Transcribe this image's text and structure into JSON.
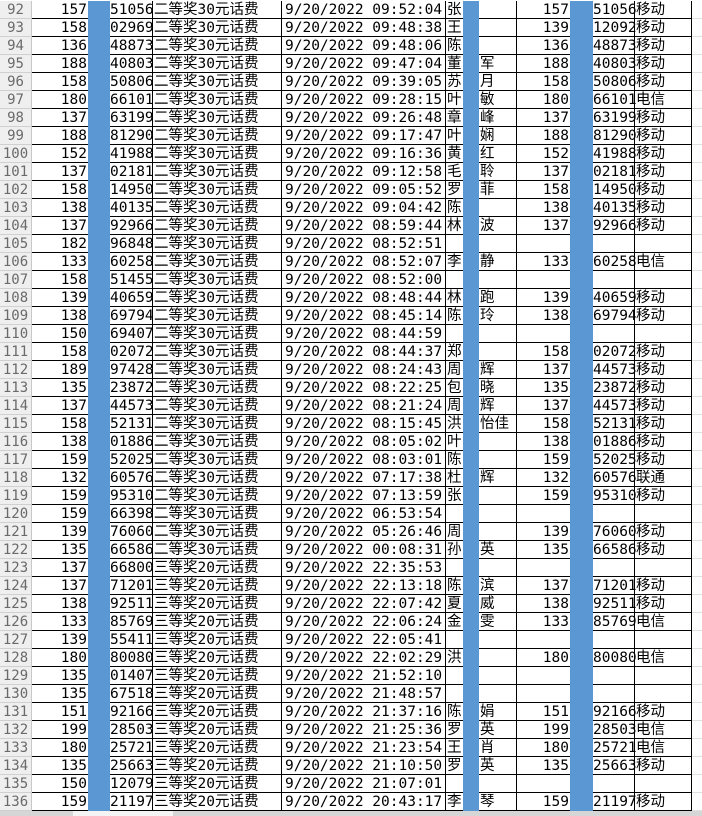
{
  "colors": {
    "highlight_column": "#5b97d3",
    "row_header_bg": "#efefef",
    "gridline": "#000000"
  },
  "rows": [
    [
      "92",
      "157",
      "51056",
      "二等奖30元话费",
      "9/20/2022 09:52:04",
      "张",
      "",
      "157",
      "51056",
      "移动"
    ],
    [
      "93",
      "158",
      "02969",
      "二等奖30元话费",
      "9/20/2022 09:48:38",
      "王",
      "",
      "139",
      "12092",
      "移动"
    ],
    [
      "94",
      "136",
      "48873",
      "二等奖30元话费",
      "9/20/2022 09:48:06",
      "陈",
      "",
      "136",
      "48873",
      "移动"
    ],
    [
      "95",
      "188",
      "40803",
      "二等奖30元话费",
      "9/20/2022 09:47:04",
      "董",
      "军",
      "188",
      "40803",
      "移动"
    ],
    [
      "96",
      "158",
      "50806",
      "二等奖30元话费",
      "9/20/2022 09:39:05",
      "苏",
      "月",
      "158",
      "50806",
      "移动"
    ],
    [
      "97",
      "180",
      "66101",
      "二等奖30元话费",
      "9/20/2022 09:28:15",
      "叶",
      "敏",
      "180",
      "66101",
      "电信"
    ],
    [
      "98",
      "137",
      "63199",
      "二等奖30元话费",
      "9/20/2022 09:26:48",
      "章",
      "峰",
      "137",
      "63199",
      "移动"
    ],
    [
      "99",
      "188",
      "81290",
      "二等奖30元话费",
      "9/20/2022 09:17:47",
      "叶",
      "娴",
      "188",
      "81290",
      "移动"
    ],
    [
      "100",
      "152",
      "41988",
      "二等奖30元话费",
      "9/20/2022 09:16:36",
      "黄",
      "红",
      "152",
      "41988",
      "移动"
    ],
    [
      "101",
      "137",
      "02181",
      "二等奖30元话费",
      "9/20/2022 09:12:58",
      "毛",
      "聆",
      "137",
      "02181",
      "移动"
    ],
    [
      "102",
      "158",
      "14950",
      "二等奖30元话费",
      "9/20/2022 09:05:52",
      "罗",
      "菲",
      "158",
      "14950",
      "移动"
    ],
    [
      "103",
      "138",
      "40135",
      "二等奖30元话费",
      "9/20/2022 09:04:42",
      "陈",
      "",
      "138",
      "40135",
      "移动"
    ],
    [
      "104",
      "137",
      "92966",
      "二等奖30元话费",
      "9/20/2022 08:59:44",
      "林",
      "波",
      "137",
      "92966",
      "移动"
    ],
    [
      "105",
      "182",
      "96848",
      "二等奖30元话费",
      "9/20/2022 08:52:51",
      "",
      "",
      "",
      "",
      ""
    ],
    [
      "106",
      "133",
      "60258",
      "二等奖30元话费",
      "9/20/2022 08:52:07",
      "李",
      "静",
      "133",
      "60258",
      "电信"
    ],
    [
      "107",
      "158",
      "51455",
      "二等奖30元话费",
      "9/20/2022 08:52:00",
      "",
      "",
      "",
      "",
      ""
    ],
    [
      "108",
      "139",
      "40659",
      "二等奖30元话费",
      "9/20/2022 08:48:44",
      "林",
      "跑",
      "139",
      "40659",
      "移动"
    ],
    [
      "109",
      "138",
      "69794",
      "二等奖30元话费",
      "9/20/2022 08:45:14",
      "陈",
      "玲",
      "138",
      "69794",
      "移动"
    ],
    [
      "110",
      "150",
      "69407",
      "二等奖30元话费",
      "9/20/2022 08:44:59",
      "",
      "",
      "",
      "",
      ""
    ],
    [
      "111",
      "158",
      "02072",
      "二等奖30元话费",
      "9/20/2022 08:44:37",
      "郑",
      "",
      "158",
      "02072",
      "移动"
    ],
    [
      "112",
      "189",
      "97428",
      "二等奖30元话费",
      "9/20/2022 08:24:43",
      "周",
      "辉",
      "137",
      "44573",
      "移动"
    ],
    [
      "113",
      "135",
      "23872",
      "二等奖30元话费",
      "9/20/2022 08:22:25",
      "包",
      "晓",
      "135",
      "23872",
      "移动"
    ],
    [
      "114",
      "137",
      "44573",
      "二等奖30元话费",
      "9/20/2022 08:21:24",
      "周",
      "辉",
      "137",
      "44573",
      "移动"
    ],
    [
      "115",
      "158",
      "52131",
      "二等奖30元话费",
      "9/20/2022 08:15:45",
      "洪",
      "怡佳",
      "158",
      "52131",
      "移动"
    ],
    [
      "116",
      "138",
      "01886",
      "二等奖30元话费",
      "9/20/2022 08:05:02",
      "叶",
      "",
      "138",
      "01886",
      "移动"
    ],
    [
      "117",
      "159",
      "52025",
      "二等奖30元话费",
      "9/20/2022 08:03:01",
      "陈",
      "",
      "159",
      "52025",
      "移动"
    ],
    [
      "118",
      "132",
      "60576",
      "二等奖30元话费",
      "9/20/2022 07:17:38",
      "杜",
      "辉",
      "132",
      "60576",
      "联通"
    ],
    [
      "119",
      "159",
      "95310",
      "二等奖30元话费",
      "9/20/2022 07:13:59",
      "张",
      "",
      "159",
      "95310",
      "移动"
    ],
    [
      "120",
      "159",
      "66398",
      "二等奖30元话费",
      "9/20/2022 06:53:54",
      "",
      "",
      "",
      "",
      ""
    ],
    [
      "121",
      "139",
      "76060",
      "二等奖30元话费",
      "9/20/2022 05:26:46",
      "周",
      "",
      "139",
      "76060",
      "移动"
    ],
    [
      "122",
      "135",
      "66586",
      "二等奖30元话费",
      "9/20/2022 00:08:31",
      "孙",
      "英",
      "135",
      "66586",
      "移动"
    ],
    [
      "123",
      "137",
      "66800",
      "三等奖20元话费",
      "9/20/2022 22:35:53",
      "",
      "",
      "",
      "",
      ""
    ],
    [
      "124",
      "137",
      "71201",
      "三等奖20元话费",
      "9/20/2022 22:13:18",
      "陈",
      "滨",
      "137",
      "71201",
      "移动"
    ],
    [
      "125",
      "138",
      "92511",
      "三等奖20元话费",
      "9/20/2022 22:07:42",
      "夏",
      "威",
      "138",
      "92511",
      "移动"
    ],
    [
      "126",
      "133",
      "85769",
      "三等奖20元话费",
      "9/20/2022 22:06:24",
      "金",
      "雯",
      "133",
      "85769",
      "电信"
    ],
    [
      "127",
      "139",
      "55411",
      "三等奖20元话费",
      "9/20/2022 22:05:41",
      "",
      "",
      "",
      "",
      ""
    ],
    [
      "128",
      "180",
      "80080",
      "三等奖20元话费",
      "9/20/2022 22:02:29",
      "洪",
      "",
      "180",
      "80080",
      "电信"
    ],
    [
      "129",
      "135",
      "01407",
      "三等奖20元话费",
      "9/20/2022 21:52:10",
      "",
      "",
      "",
      "",
      ""
    ],
    [
      "130",
      "135",
      "67518",
      "三等奖20元话费",
      "9/20/2022 21:48:57",
      "",
      "",
      "",
      "",
      ""
    ],
    [
      "131",
      "151",
      "92166",
      "三等奖20元话费",
      "9/20/2022 21:37:16",
      "陈",
      "娟",
      "151",
      "92166",
      "移动"
    ],
    [
      "132",
      "199",
      "28503",
      "三等奖20元话费",
      "9/20/2022 21:25:36",
      "罗",
      "英",
      "199",
      "28503",
      "电信"
    ],
    [
      "133",
      "180",
      "25721",
      "三等奖20元话费",
      "9/20/2022 21:23:54",
      "王",
      "肖",
      "180",
      "25721",
      "电信"
    ],
    [
      "134",
      "135",
      "25663",
      "三等奖20元话费",
      "9/20/2022 21:10:50",
      "罗",
      "英",
      "135",
      "25663",
      "移动"
    ],
    [
      "135",
      "150",
      "12079",
      "三等奖20元话费",
      "9/20/2022 21:07:01",
      "",
      "",
      "",
      "",
      ""
    ],
    [
      "136",
      "159",
      "21197",
      "三等奖20元话费",
      "9/20/2022 20:43:17",
      "李",
      "琴",
      "159",
      "21197",
      "移动"
    ]
  ]
}
